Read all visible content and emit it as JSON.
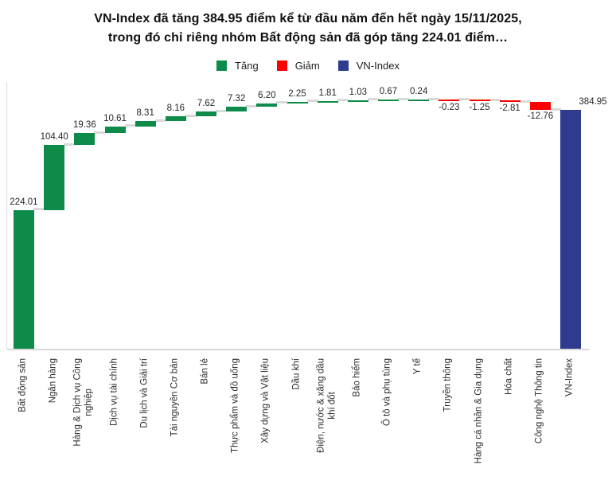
{
  "title": {
    "lines": [
      "VN-Index đã tăng 384.95 điểm kể từ đầu năm đến hết ngày 15/11/2025,",
      "trong đó chỉ riêng nhóm Bất động sản đã góp tăng 224.01 điểm…"
    ]
  },
  "legend": {
    "items": [
      {
        "label": "Tăng",
        "color": "#0e8b49"
      },
      {
        "label": "Giảm",
        "color": "#ff0000"
      },
      {
        "label": "VN-Index",
        "color": "#2f3b8e"
      }
    ]
  },
  "chart_data": {
    "type": "bar",
    "subtype": "waterfall",
    "title": "VN-Index đã tăng 384.95 điểm kể từ đầu năm đến hết ngày 15/11/2025, trong đó chỉ riêng nhóm Bất động sản đã góp tăng 224.01 điểm…",
    "legend_position": "top",
    "grid": false,
    "ylim": [
      0,
      402
    ],
    "categories": [
      "Bất động sản",
      "Ngân hàng",
      "Hàng & Dịch vụ Công nghiệp",
      "Dịch vụ tài chính",
      "Du lịch và Giải trí",
      "Tài nguyên Cơ bản",
      "Bán lẻ",
      "Thực phẩm và đồ uống",
      "Xây dựng và Vật liệu",
      "Dầu khí",
      "Điện, nước & xăng dầu khí đốt",
      "Bảo hiểm",
      "Ô tô và phụ tùng",
      "Y tế",
      "Truyền thông",
      "Hàng cá nhân & Gia dụng",
      "Hóa chất",
      "Công nghệ Thông tin",
      "VN-Index"
    ],
    "category_lines": [
      [
        "Bất động sản"
      ],
      [
        "Ngân hàng"
      ],
      [
        "Hàng & Dịch vụ Công",
        "nghiệp"
      ],
      [
        "Dịch vụ tài chính"
      ],
      [
        "Du lịch và Giải trí"
      ],
      [
        "Tài nguyên Cơ bản"
      ],
      [
        "Bán lẻ"
      ],
      [
        "Thực phẩm và đồ uống"
      ],
      [
        "Xây dựng và Vật liệu"
      ],
      [
        "Dầu khí"
      ],
      [
        "Điện, nước & xăng dầu",
        "khí đốt"
      ],
      [
        "Bảo hiểm"
      ],
      [
        "Ô tô và phụ tùng"
      ],
      [
        "Y tế"
      ],
      [
        "Truyền thông"
      ],
      [
        "Hàng cá nhân & Gia dụng"
      ],
      [
        "Hóa chất"
      ],
      [
        "Công nghệ Thông tin"
      ],
      [
        "VN-Index"
      ]
    ],
    "values": [
      224.01,
      104.4,
      19.36,
      10.61,
      8.31,
      8.16,
      7.62,
      7.32,
      6.2,
      2.25,
      1.81,
      1.03,
      0.67,
      0.24,
      -0.23,
      -1.25,
      -2.81,
      -12.76,
      384.95
    ],
    "labels": [
      "224.01",
      "104.40",
      "19.36",
      "10.61",
      "8.31",
      "8.16",
      "7.62",
      "7.32",
      "6.20",
      "2.25",
      "1.81",
      "1.03",
      "0.67",
      "0.24",
      "-0.23",
      "-1.25",
      "-2.81",
      "-12.76",
      "384.95"
    ],
    "bar_types": [
      "increase",
      "increase",
      "increase",
      "increase",
      "increase",
      "increase",
      "increase",
      "increase",
      "increase",
      "increase",
      "increase",
      "increase",
      "increase",
      "increase",
      "decrease",
      "decrease",
      "decrease",
      "decrease",
      "total"
    ],
    "colors": {
      "increase": "#0e8b49",
      "decrease": "#ff0000",
      "total": "#2f3b8e",
      "connector": "#d9d9d9",
      "axis": "#d9d9d9"
    }
  }
}
